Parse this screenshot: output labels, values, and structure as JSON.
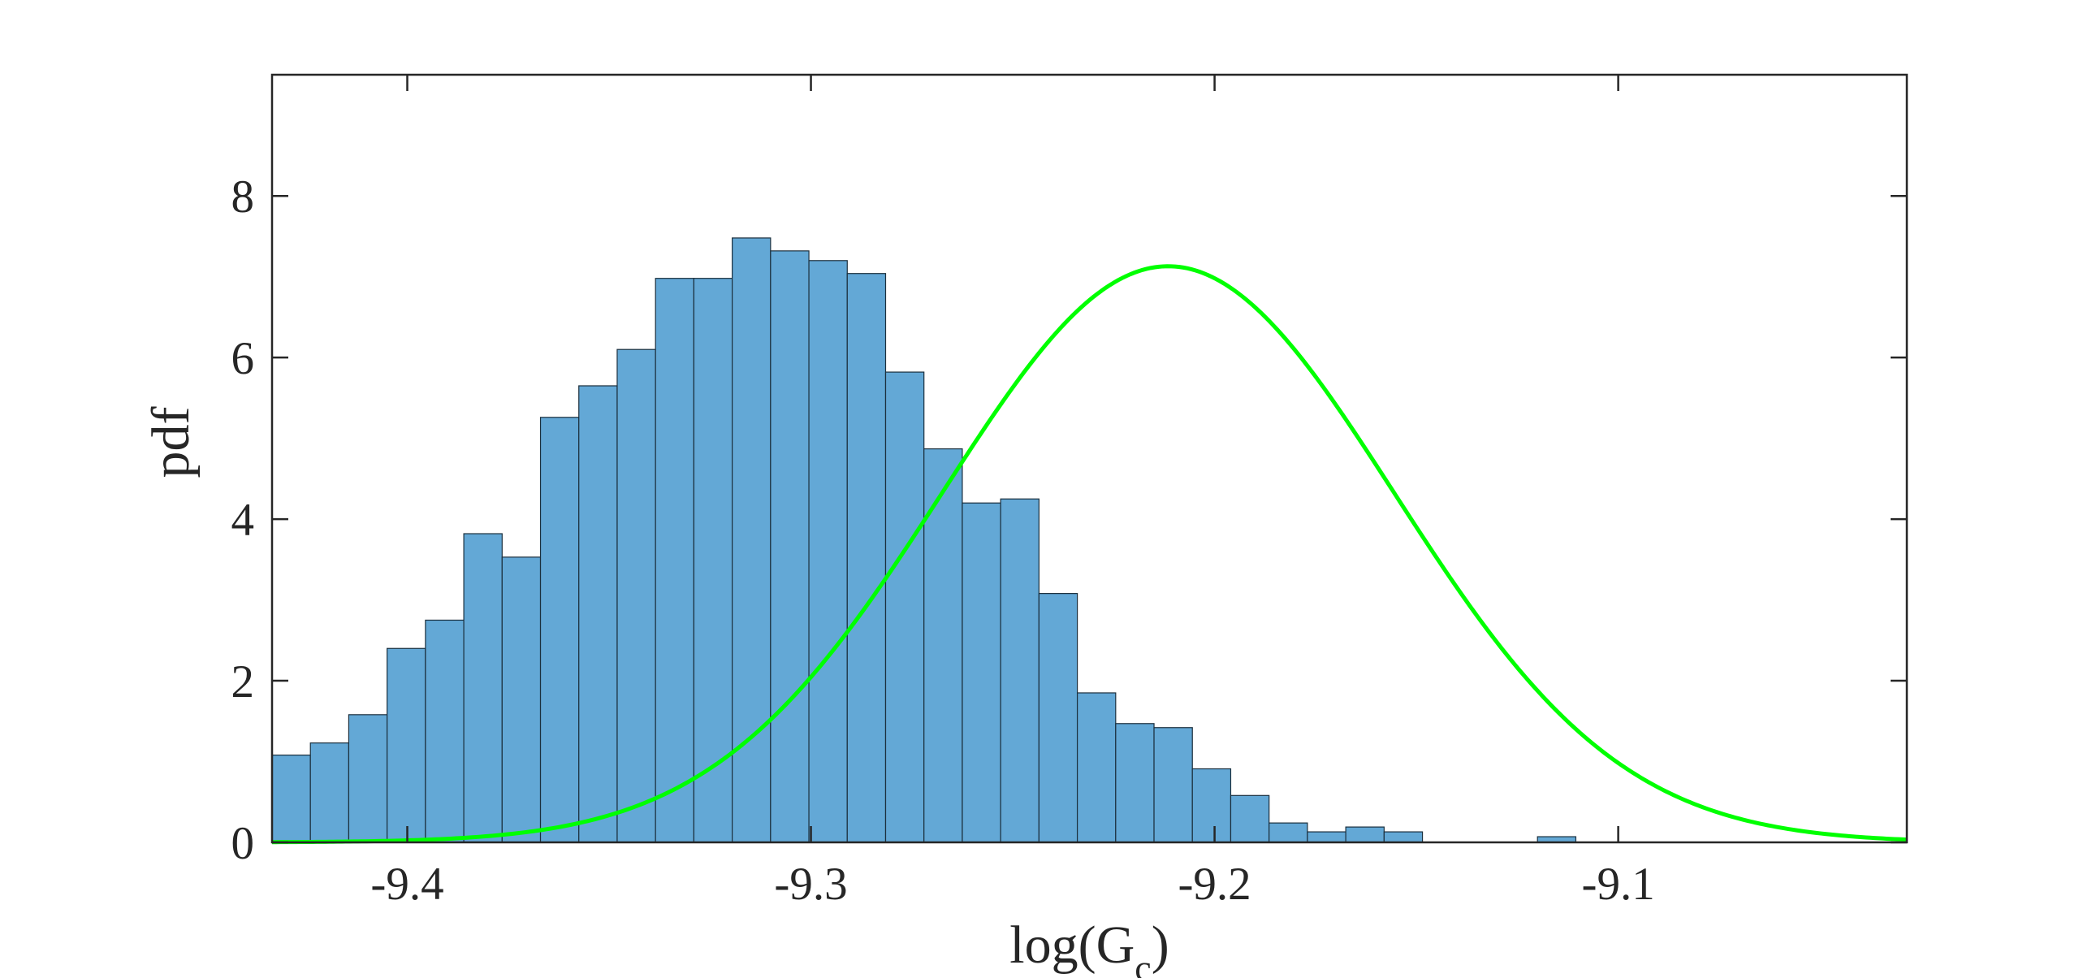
{
  "chart_data": {
    "type": "bar",
    "title": "",
    "xlabel": "log(G",
    "xlabel_subscript": "c",
    "xlabel_suffix": ")",
    "ylabel": "pdf",
    "xlim": [
      -9.4335,
      -9.0285
    ],
    "ylim": [
      0,
      9.5
    ],
    "xticks": [
      -9.4,
      -9.3,
      -9.2,
      -9.1
    ],
    "xtick_labels": [
      "-9.4",
      "-9.3",
      "-9.2",
      "-9.1"
    ],
    "yticks": [
      0,
      2,
      4,
      6,
      8
    ],
    "ytick_labels": [
      "0",
      "2",
      "4",
      "6",
      "8"
    ],
    "grid": false,
    "bin_width": 0.0095,
    "histogram": {
      "bin_edges": [
        -9.4335,
        -9.424,
        -9.4145,
        -9.405,
        -9.3955,
        -9.386,
        -9.3765,
        -9.367,
        -9.3575,
        -9.348,
        -9.3385,
        -9.329,
        -9.3195,
        -9.31,
        -9.3005,
        -9.291,
        -9.2815,
        -9.272,
        -9.2625,
        -9.253,
        -9.2435,
        -9.234,
        -9.2245,
        -9.215,
        -9.2055,
        -9.196,
        -9.1865,
        -9.177,
        -9.1675,
        -9.158,
        -9.1485,
        -9.139,
        -9.1295,
        -9.12,
        -9.1105
      ],
      "values": [
        1.08,
        1.23,
        1.58,
        2.4,
        2.75,
        3.82,
        3.53,
        5.26,
        5.65,
        6.1,
        6.98,
        6.98,
        7.48,
        7.32,
        7.2,
        7.04,
        5.82,
        4.87,
        4.2,
        4.25,
        3.08,
        1.85,
        1.47,
        1.42,
        0.91,
        0.58,
        0.24,
        0.13,
        0.19,
        0.13,
        0.0,
        0.0,
        0.0,
        0.07,
        0.07
      ]
    },
    "series": [
      {
        "name": "",
        "type": "line",
        "kind": "gaussian",
        "mean": -9.2115,
        "std": 0.056,
        "peak": 7.13,
        "color": "#00ff00"
      }
    ],
    "colors": {
      "bar_fill": "#63a8d6",
      "bar_edge": "#1b2f3d",
      "curve": "#00ff00",
      "axes": "#262626"
    }
  }
}
